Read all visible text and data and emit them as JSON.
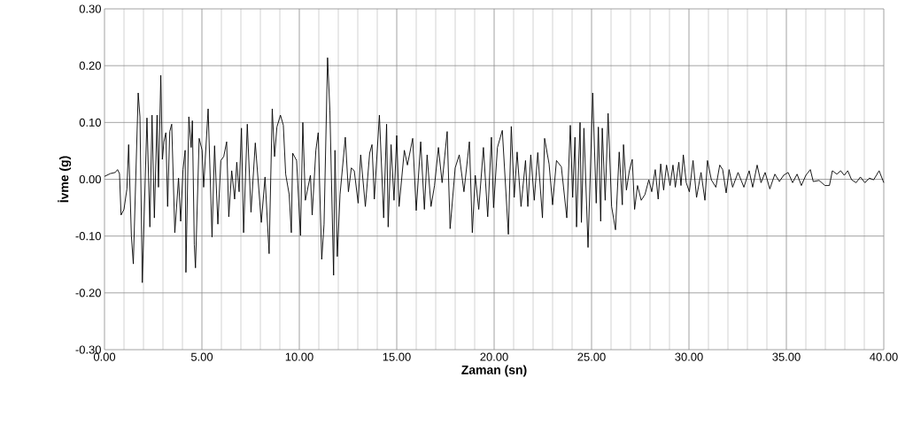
{
  "chart_data": {
    "type": "line",
    "xlabel": "Zaman (sn)",
    "ylabel": "İvme (g)",
    "xlim": [
      0,
      40
    ],
    "ylim": [
      -0.3,
      0.3
    ],
    "xticks": [
      {
        "value": 0,
        "label": "0.00"
      },
      {
        "value": 5,
        "label": "5.00"
      },
      {
        "value": 10,
        "label": "10.00"
      },
      {
        "value": 15,
        "label": "15.00"
      },
      {
        "value": 20,
        "label": "20.00"
      },
      {
        "value": 25,
        "label": "25.00"
      },
      {
        "value": 30,
        "label": "30.00"
      },
      {
        "value": 35,
        "label": "35.00"
      },
      {
        "value": 40,
        "label": "40.00"
      }
    ],
    "yticks": [
      {
        "value": -0.3,
        "label": "-0.30"
      },
      {
        "value": -0.2,
        "label": "-0.20"
      },
      {
        "value": -0.1,
        "label": "-0.10"
      },
      {
        "value": 0,
        "label": "0.00"
      },
      {
        "value": 0.1,
        "label": "0.10"
      },
      {
        "value": 0.2,
        "label": "0.20"
      },
      {
        "value": 0.3,
        "label": "0.30"
      }
    ],
    "grid": true,
    "marker": "none",
    "line_style": "solid",
    "series": [
      {
        "color": "#000000",
        "x": [
          0,
          0.3,
          0.55,
          0.67,
          0.77,
          0.85,
          1.0,
          1.15,
          1.24,
          1.38,
          1.48,
          1.73,
          1.82,
          1.94,
          2.18,
          2.33,
          2.44,
          2.56,
          2.7,
          2.77,
          2.89,
          2.97,
          3.05,
          3.15,
          3.24,
          3.35,
          3.45,
          3.61,
          3.8,
          3.91,
          4.03,
          4.14,
          4.18,
          4.33,
          4.45,
          4.51,
          4.61,
          4.67,
          4.86,
          5.01,
          5.09,
          5.32,
          5.52,
          5.65,
          5.82,
          5.97,
          6.12,
          6.27,
          6.38,
          6.53,
          6.68,
          6.79,
          6.91,
          7.03,
          7.14,
          7.33,
          7.52,
          7.74,
          8.05,
          8.24,
          8.45,
          8.61,
          8.73,
          8.85,
          9.03,
          9.18,
          9.3,
          9.48,
          9.59,
          9.66,
          9.86,
          10.06,
          10.18,
          10.31,
          10.57,
          10.66,
          10.85,
          10.97,
          11.15,
          11.27,
          11.45,
          11.57,
          11.76,
          11.83,
          11.95,
          12.09,
          12.36,
          12.52,
          12.67,
          12.82,
          13.02,
          13.15,
          13.39,
          13.61,
          13.73,
          13.85,
          14.11,
          14.33,
          14.48,
          14.56,
          14.71,
          14.86,
          15.0,
          15.12,
          15.39,
          15.55,
          15.82,
          16.0,
          16.23,
          16.42,
          16.56,
          16.76,
          16.94,
          17.14,
          17.33,
          17.59,
          17.74,
          18.0,
          18.21,
          18.45,
          18.73,
          18.88,
          19.03,
          19.21,
          19.45,
          19.67,
          19.86,
          19.97,
          20.17,
          20.42,
          20.73,
          20.88,
          21.03,
          21.18,
          21.38,
          21.61,
          21.73,
          21.88,
          22.06,
          22.24,
          22.48,
          22.59,
          22.82,
          23.0,
          23.2,
          23.45,
          23.73,
          23.91,
          24.03,
          24.15,
          24.23,
          24.41,
          24.48,
          24.61,
          24.82,
          25.06,
          25.24,
          25.35,
          25.47,
          25.55,
          25.7,
          25.85,
          26.03,
          26.23,
          26.42,
          26.58,
          26.64,
          26.79,
          26.94,
          27.09,
          27.21,
          27.36,
          27.55,
          27.74,
          27.94,
          28.09,
          28.27,
          28.42,
          28.55,
          28.7,
          28.85,
          29.03,
          29.18,
          29.3,
          29.48,
          29.59,
          29.71,
          29.86,
          30.02,
          30.21,
          30.39,
          30.62,
          30.82,
          30.95,
          31.15,
          31.38,
          31.58,
          31.73,
          31.91,
          32.06,
          32.24,
          32.52,
          32.82,
          33.09,
          33.27,
          33.5,
          33.7,
          33.91,
          34.15,
          34.41,
          34.64,
          34.86,
          35.09,
          35.32,
          35.55,
          35.77,
          36.0,
          36.23,
          36.38,
          36.68,
          36.98,
          37.21,
          37.36,
          37.59,
          37.79,
          37.97,
          38.15,
          38.35,
          38.58,
          38.8,
          39.03,
          39.26,
          39.48,
          39.76,
          40.0
        ],
        "values": [
          0.005,
          0.01,
          0.012,
          0.017,
          0.01,
          -0.063,
          -0.053,
          -0.017,
          0.061,
          -0.1,
          -0.149,
          0.152,
          0.11,
          -0.182,
          0.108,
          -0.084,
          0.113,
          -0.068,
          0.113,
          -0.014,
          0.183,
          0.035,
          0.066,
          0.082,
          -0.048,
          0.084,
          0.097,
          -0.094,
          0.002,
          -0.074,
          0.017,
          0.051,
          -0.164,
          0.11,
          0.056,
          0.103,
          -0.115,
          -0.156,
          0.072,
          0.051,
          -0.014,
          0.124,
          -0.102,
          0.059,
          -0.079,
          0.033,
          0.04,
          0.066,
          -0.066,
          0.015,
          -0.035,
          0.03,
          -0.022,
          0.09,
          -0.094,
          0.097,
          -0.058,
          0.064,
          -0.076,
          0.004,
          -0.131,
          0.124,
          0.04,
          0.092,
          0.113,
          0.095,
          0.009,
          -0.027,
          -0.094,
          0.046,
          0.033,
          -0.099,
          0.1,
          -0.037,
          0.007,
          -0.063,
          0.051,
          0.082,
          -0.141,
          -0.079,
          0.214,
          0.121,
          -0.169,
          0.051,
          -0.136,
          -0.027,
          0.074,
          -0.022,
          0.02,
          0.015,
          -0.042,
          0.043,
          -0.048,
          0.046,
          0.061,
          -0.035,
          0.113,
          -0.068,
          0.097,
          -0.084,
          0.061,
          -0.037,
          0.077,
          -0.048,
          0.051,
          0.025,
          0.072,
          -0.055,
          0.066,
          -0.053,
          0.043,
          -0.048,
          -0.011,
          0.056,
          -0.006,
          0.084,
          -0.087,
          0.02,
          0.043,
          -0.022,
          0.066,
          -0.094,
          0.007,
          -0.053,
          0.056,
          -0.066,
          0.074,
          -0.05,
          0.056,
          0.086,
          -0.097,
          0.093,
          -0.032,
          0.048,
          -0.048,
          0.033,
          -0.048,
          0.043,
          -0.037,
          0.047,
          -0.068,
          0.072,
          0.027,
          -0.045,
          0.033,
          0.022,
          -0.068,
          0.095,
          -0.032,
          0.074,
          -0.084,
          0.1,
          -0.076,
          0.09,
          -0.12,
          0.152,
          -0.042,
          0.092,
          -0.074,
          0.09,
          -0.037,
          0.116,
          -0.048,
          -0.089,
          0.048,
          -0.045,
          0.061,
          -0.019,
          0.015,
          0.035,
          -0.053,
          -0.011,
          -0.037,
          -0.027,
          -0.001,
          -0.022,
          0.017,
          -0.035,
          0.027,
          -0.019,
          0.025,
          -0.011,
          0.025,
          -0.014,
          0.03,
          -0.011,
          0.043,
          -0.006,
          -0.022,
          0.033,
          -0.032,
          0.012,
          -0.037,
          0.033,
          -0.001,
          -0.014,
          0.025,
          0.017,
          -0.024,
          0.017,
          -0.014,
          0.012,
          -0.014,
          0.015,
          -0.014,
          0.025,
          -0.006,
          0.012,
          -0.017,
          0.009,
          -0.004,
          0.007,
          0.012,
          -0.006,
          0.009,
          -0.011,
          0.007,
          0.017,
          -0.004,
          -0.002,
          -0.011,
          -0.011,
          0.015,
          0.009,
          0.015,
          0.007,
          0.015,
          -0.001,
          -0.006,
          0.004,
          -0.006,
          0.002,
          -0.001,
          0.015,
          -0.006
        ]
      }
    ]
  }
}
